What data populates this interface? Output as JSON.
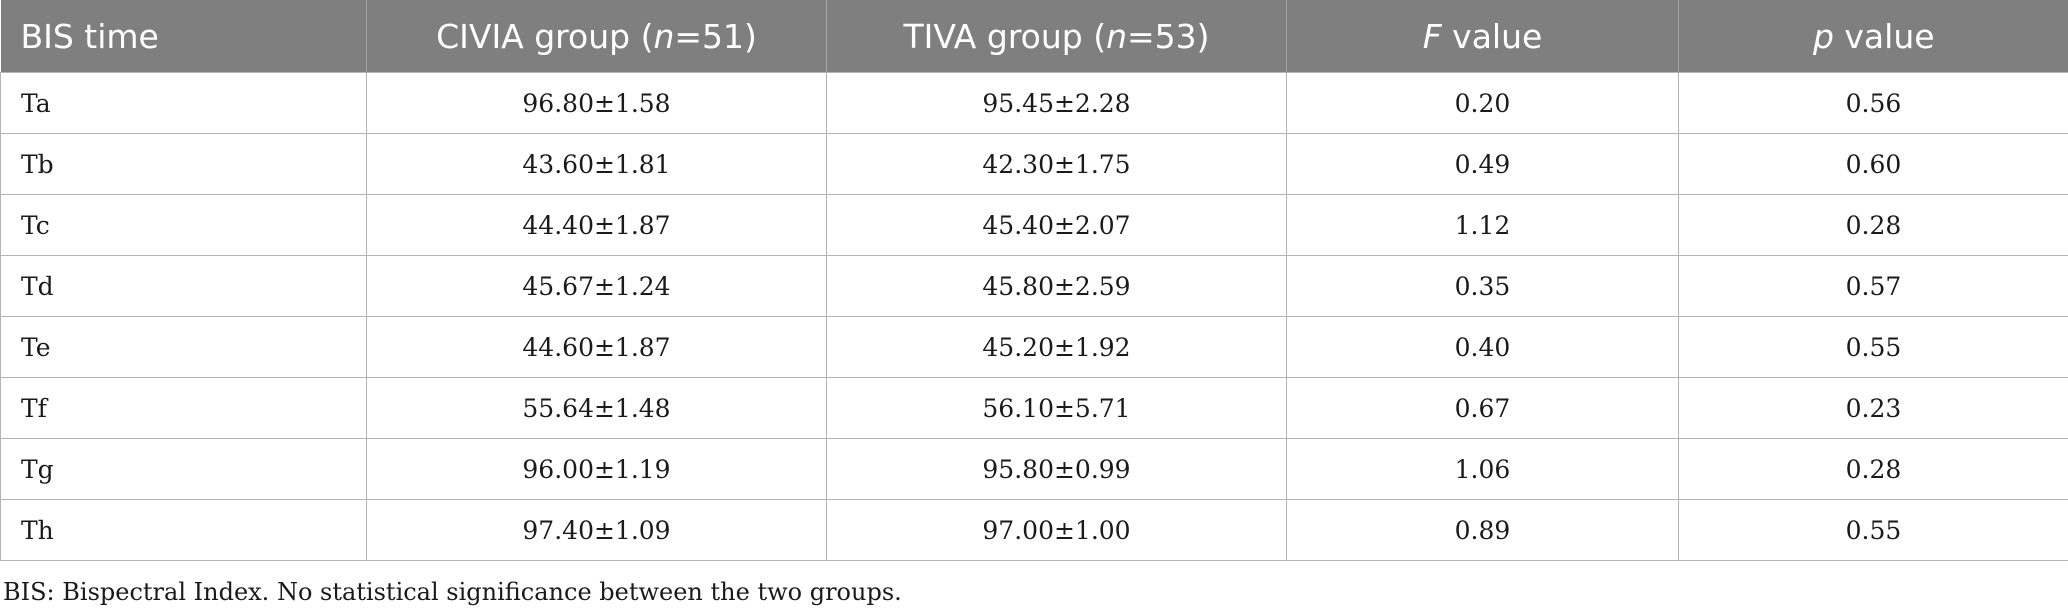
{
  "table": {
    "headers": [
      {
        "pre": "BIS time",
        "ital": "",
        "post": ""
      },
      {
        "pre": "CIVIA group (",
        "ital": "n",
        "post": "=51)"
      },
      {
        "pre": "TIVA group (",
        "ital": "n",
        "post": "=53)"
      },
      {
        "pre": "",
        "ital": "F",
        "post": " value"
      },
      {
        "pre": "",
        "ital": "p",
        "post": " value"
      }
    ],
    "rows": [
      [
        "Ta",
        "96.80±1.58",
        "95.45±2.28",
        "0.20",
        "0.56"
      ],
      [
        "Tb",
        "43.60±1.81",
        "42.30±1.75",
        "0.49",
        "0.60"
      ],
      [
        "Tc",
        "44.40±1.87",
        "45.40±2.07",
        "1.12",
        "0.28"
      ],
      [
        "Td",
        "45.67±1.24",
        "45.80±2.59",
        "0.35",
        "0.57"
      ],
      [
        "Te",
        "44.60±1.87",
        "45.20±1.92",
        "0.40",
        "0.55"
      ],
      [
        "Tf",
        "55.64±1.48",
        "56.10±5.71",
        "0.67",
        "0.23"
      ],
      [
        "Tg",
        "96.00±1.19",
        "95.80±0.99",
        "1.06",
        "0.28"
      ],
      [
        "Th",
        "97.40±1.09",
        "97.00±1.00",
        "0.89",
        "0.55"
      ]
    ],
    "header_bg": "#7f7f7f",
    "header_fg": "#ffffff"
  },
  "footnote": "BIS: Bispectral Index. No statistical significance between the two groups."
}
